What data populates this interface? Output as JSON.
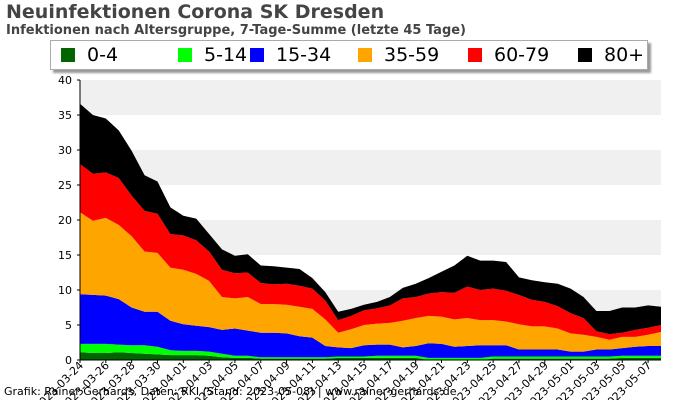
{
  "chart_data": {
    "type": "area",
    "stacked": true,
    "title": "Neuinfektionen Corona SK Dresden",
    "subtitle": "Infektionen nach Altersgruppe, 7-Tage-Summe (letzte 45 Tage)",
    "ylim": [
      0,
      40
    ],
    "yticks": [
      0,
      5,
      10,
      15,
      20,
      25,
      30,
      35,
      40
    ],
    "grid": true,
    "legend_position": "top",
    "x_dates": [
      "2023-03-24",
      "2023-03-25",
      "2023-03-26",
      "2023-03-27",
      "2023-03-28",
      "2023-03-29",
      "2023-03-30",
      "2023-03-31",
      "2023-04-01",
      "2023-04-02",
      "2023-04-03",
      "2023-04-04",
      "2023-04-05",
      "2023-04-06",
      "2023-04-07",
      "2023-04-08",
      "2023-04-09",
      "2023-04-10",
      "2023-04-11",
      "2023-04-12",
      "2023-04-13",
      "2023-04-14",
      "2023-04-15",
      "2023-04-16",
      "2023-04-17",
      "2023-04-18",
      "2023-04-19",
      "2023-04-20",
      "2023-04-21",
      "2023-04-22",
      "2023-04-23",
      "2023-04-24",
      "2023-04-25",
      "2023-04-26",
      "2023-04-27",
      "2023-04-28",
      "2023-04-29",
      "2023-04-30",
      "2023-05-01",
      "2023-05-02",
      "2023-05-03",
      "2023-05-04",
      "2023-05-05",
      "2023-05-06",
      "2023-05-07",
      "2023-05-08"
    ],
    "xtick_labels": [
      "2023-03-24",
      "2023-03-26",
      "2023-03-28",
      "2023-03-30",
      "2023-04-01",
      "2023-04-03",
      "2023-04-05",
      "2023-04-07",
      "2023-04-09",
      "2023-04-11",
      "2023-04-13",
      "2023-04-15",
      "2023-04-17",
      "2023-04-19",
      "2023-04-21",
      "2023-04-23",
      "2023-04-25",
      "2023-04-27",
      "2023-04-29",
      "2023-05-01",
      "2023-05-03",
      "2023-05-05",
      "2023-05-07"
    ],
    "series": [
      {
        "name": "0-4",
        "color": "#006400",
        "values": [
          1.1,
          1,
          1,
          1.1,
          1,
          0.9,
          0.8,
          0.7,
          0.7,
          0.7,
          0.6,
          0.4,
          0.3,
          0.3,
          0.2,
          0.2,
          0.2,
          0.2,
          0.2,
          0.2,
          0.3,
          0.3,
          0.3,
          0.3,
          0.3,
          0.3,
          0.3,
          0,
          0,
          0,
          0,
          0,
          0.2,
          0.2,
          0.2,
          0.2,
          0.2,
          0.2,
          0.2,
          0.2,
          0.2,
          0.2,
          0.3,
          0.3,
          0.3,
          0.3
        ]
      },
      {
        "name": "5-14",
        "color": "#00ff00",
        "values": [
          1.2,
          1.3,
          1.3,
          1.1,
          1.1,
          1.2,
          1.1,
          0.7,
          0.6,
          0.6,
          0.6,
          0.5,
          0.3,
          0.3,
          0.2,
          0.2,
          0.2,
          0.2,
          0.2,
          0.2,
          0.2,
          0.2,
          0.2,
          0.3,
          0.3,
          0.3,
          0.3,
          0.3,
          0.3,
          0.3,
          0.3,
          0.3,
          0.3,
          0.3,
          0.3,
          0.3,
          0.3,
          0.3,
          0.3,
          0.3,
          0.3,
          0.3,
          0.3,
          0.3,
          0.3,
          0.3
        ]
      },
      {
        "name": "15-34",
        "color": "#0000ff",
        "values": [
          7.1,
          7,
          6.9,
          6.5,
          5.4,
          4.8,
          5,
          4.2,
          3.8,
          3.6,
          3.5,
          3.4,
          3.9,
          3.6,
          3.5,
          3.5,
          3.4,
          3,
          2.8,
          1.6,
          1.3,
          1.2,
          1.6,
          1.6,
          1.6,
          1.2,
          1.4,
          2.1,
          2,
          1.6,
          1.7,
          1.8,
          1.6,
          1.6,
          1,
          1,
          1,
          1,
          0.7,
          0.7,
          1,
          1,
          1.1,
          1.3,
          1.4,
          1.4
        ]
      },
      {
        "name": "35-59",
        "color": "#ffa500",
        "values": [
          11.7,
          10.6,
          11.1,
          10.6,
          10.2,
          8.6,
          8.4,
          7.6,
          7.8,
          7.4,
          6.6,
          4.7,
          4.3,
          4.8,
          4.1,
          4.1,
          4.1,
          4.2,
          4.1,
          3.8,
          2.1,
          2.7,
          2.9,
          3,
          3.1,
          3.8,
          4,
          3.9,
          3.9,
          3.9,
          4,
          3.6,
          3.6,
          3.4,
          3.6,
          3.3,
          3.3,
          3,
          2.6,
          2.4,
          1.8,
          1.4,
          1.6,
          1.4,
          1.6,
          2
        ]
      },
      {
        "name": "60-79",
        "color": "#ff0000",
        "values": [
          6.9,
          6.7,
          6.5,
          6.7,
          5.8,
          5.8,
          5.6,
          4.8,
          4.9,
          4.8,
          4.2,
          3.9,
          3.6,
          3.5,
          3,
          2.8,
          3,
          3,
          2.9,
          2.7,
          1.8,
          1.9,
          2.1,
          2.2,
          2.5,
          3.2,
          3,
          3.2,
          3.5,
          3.8,
          4.5,
          4.3,
          4.5,
          4.4,
          4.2,
          3.8,
          3.5,
          3.2,
          2.9,
          2.4,
          0.8,
          0.8,
          0.6,
          1,
          1,
          1
        ]
      },
      {
        "name": "80+",
        "color": "#000000",
        "values": [
          8.6,
          8.4,
          7.7,
          6.8,
          6.4,
          5.1,
          4.6,
          3.8,
          2.8,
          3.1,
          2.5,
          2.9,
          2.5,
          2.6,
          2.5,
          2.6,
          2.3,
          2.4,
          1.5,
          1.2,
          1.2,
          1,
          0.8,
          0.9,
          1.2,
          1.5,
          1.9,
          2.2,
          2.9,
          3.9,
          4.4,
          4.2,
          4,
          4.1,
          2.5,
          2.8,
          2.8,
          3.2,
          3.5,
          3,
          2.9,
          3.3,
          3.6,
          3.2,
          3.2,
          2.6
        ]
      }
    ]
  },
  "footer": "Grafik: Rainer Gerhards, Daten: RKI (Stand: 2023-05-08) | www.rainer-gerhards.de"
}
